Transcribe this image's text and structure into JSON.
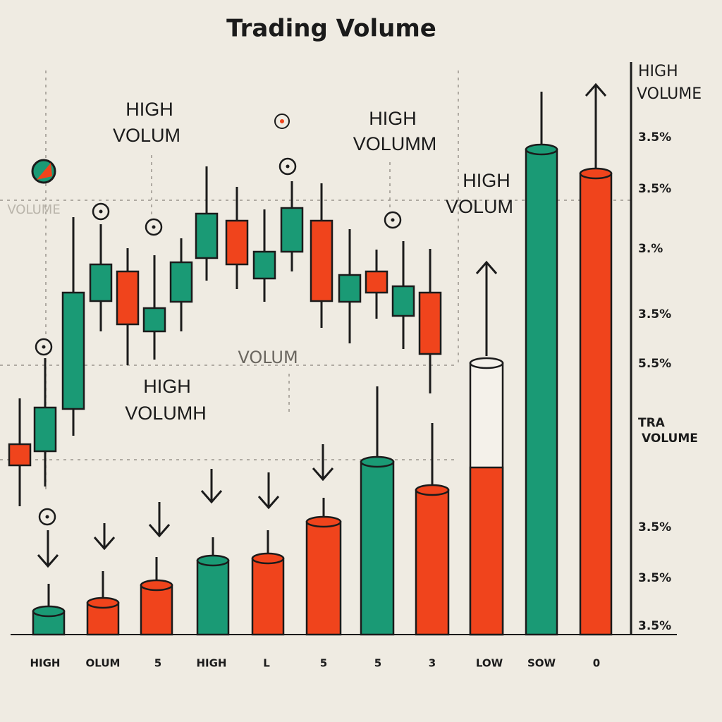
{
  "title": "Trading Volume",
  "annotations": [
    {
      "line1": "HIGH",
      "line2": "VOLUM"
    },
    {
      "line1": "HIGH",
      "line2": "VOLUMM"
    },
    {
      "line1": "HIGH",
      "line2": "VOLUMH"
    },
    {
      "line1": "HIGH",
      "line2": "VOLUM"
    }
  ],
  "faint_labels": [
    "VOLUME",
    "VOLUM"
  ],
  "right_axis": {
    "title_line1": "HIGH",
    "title_line2": "VOLUME",
    "labels": [
      "3.5%",
      "3.5%",
      "3.%",
      "3.5%",
      "5.5%",
      "TRA",
      "VOLUME",
      "3.5%",
      "3.5%",
      "3.5%"
    ]
  },
  "bottom_labels": [
    "HIGH",
    "OLUM",
    "5",
    "HIGH",
    "L",
    "5",
    "5",
    "3",
    "LOW",
    "SOW",
    "0"
  ]
}
